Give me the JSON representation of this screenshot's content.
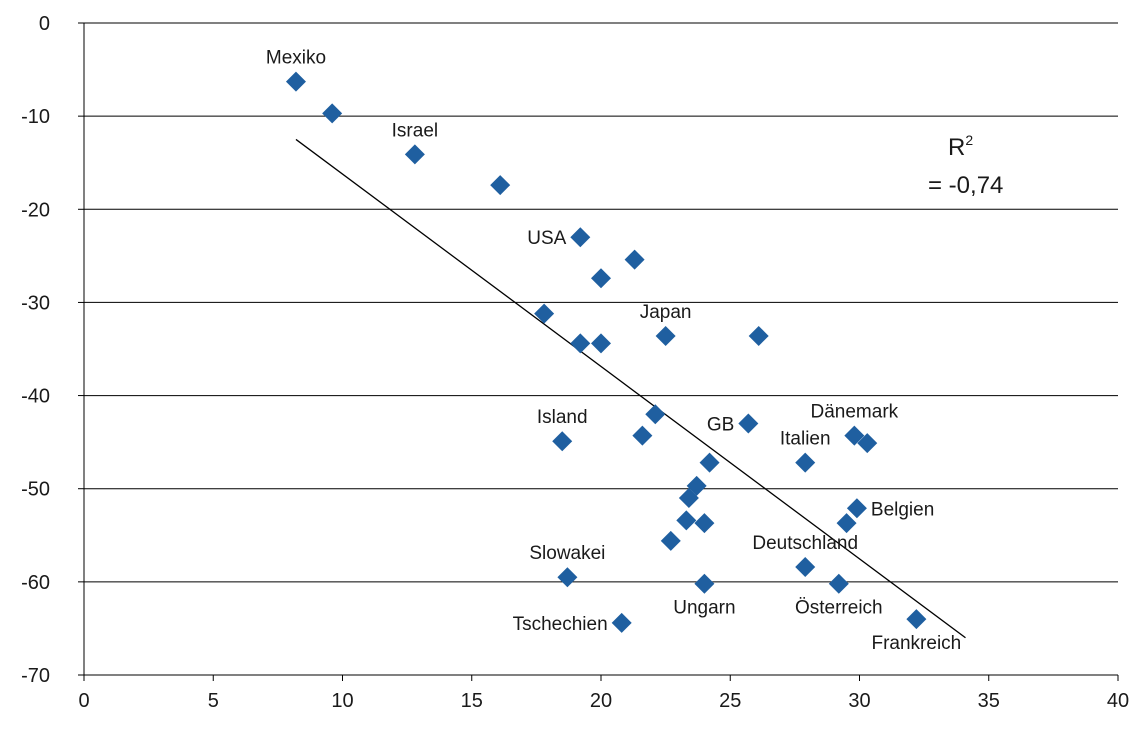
{
  "chart_data": {
    "type": "scatter",
    "x": {
      "range": [
        0,
        40
      ],
      "ticks": [
        0,
        5,
        10,
        15,
        20,
        25,
        30,
        35,
        40
      ],
      "tick_labels": [
        "0",
        "5",
        "10",
        "15",
        "20",
        "25",
        "30",
        "35",
        "40"
      ]
    },
    "y": {
      "range": [
        -70,
        0
      ],
      "ticks": [
        0,
        -10,
        -20,
        -30,
        -40,
        -50,
        -60,
        -70
      ],
      "tick_labels": [
        "0",
        "-10",
        "-20",
        "-30",
        "-40",
        "-50",
        "-60",
        "-70"
      ]
    },
    "grid": "horizontal",
    "marker": "diamond",
    "marker_color": "#1f5fa0",
    "points": [
      {
        "x": 8.2,
        "y": -6.3,
        "label": "Mexiko",
        "label_pos": "above"
      },
      {
        "x": 9.6,
        "y": -9.7
      },
      {
        "x": 12.8,
        "y": -14.1,
        "label": "Israel",
        "label_pos": "above"
      },
      {
        "x": 16.1,
        "y": -17.4
      },
      {
        "x": 19.2,
        "y": -23.0,
        "label": "USA",
        "label_pos": "left"
      },
      {
        "x": 21.3,
        "y": -25.4
      },
      {
        "x": 20.0,
        "y": -27.4
      },
      {
        "x": 17.8,
        "y": -31.2
      },
      {
        "x": 19.2,
        "y": -34.4
      },
      {
        "x": 20.0,
        "y": -34.4
      },
      {
        "x": 22.5,
        "y": -33.6,
        "label": "Japan",
        "label_pos": "above"
      },
      {
        "x": 26.1,
        "y": -33.6
      },
      {
        "x": 18.5,
        "y": -44.9,
        "label": "Island",
        "label_pos": "above"
      },
      {
        "x": 22.1,
        "y": -42.0
      },
      {
        "x": 21.6,
        "y": -44.3
      },
      {
        "x": 25.7,
        "y": -43.0,
        "label": "GB",
        "label_pos": "left"
      },
      {
        "x": 29.8,
        "y": -44.3,
        "label": "Dänemark",
        "label_pos": "above"
      },
      {
        "x": 30.3,
        "y": -45.1
      },
      {
        "x": 27.9,
        "y": -47.2,
        "label": "Italien",
        "label_pos": "above"
      },
      {
        "x": 24.2,
        "y": -47.2
      },
      {
        "x": 23.7,
        "y": -49.7
      },
      {
        "x": 23.4,
        "y": -51.0
      },
      {
        "x": 29.9,
        "y": -52.1,
        "label": "Belgien",
        "label_pos": "right"
      },
      {
        "x": 29.5,
        "y": -53.7
      },
      {
        "x": 23.3,
        "y": -53.4
      },
      {
        "x": 24.0,
        "y": -53.7
      },
      {
        "x": 22.7,
        "y": -55.6
      },
      {
        "x": 18.7,
        "y": -59.5,
        "label": "Slowakei",
        "label_pos": "above"
      },
      {
        "x": 27.9,
        "y": -58.4,
        "label": "Deutschland",
        "label_pos": "above"
      },
      {
        "x": 24.0,
        "y": -60.2,
        "label": "Ungarn",
        "label_pos": "below"
      },
      {
        "x": 29.2,
        "y": -60.2,
        "label": "Österreich",
        "label_pos": "below"
      },
      {
        "x": 20.8,
        "y": -64.4,
        "label": "Tschechien",
        "label_pos": "left"
      },
      {
        "x": 32.2,
        "y": -64.0,
        "label": "Frankreich",
        "label_pos": "below"
      }
    ],
    "trendline": {
      "x": [
        8.2,
        34.1
      ],
      "y": [
        -12.5,
        -66.0
      ]
    },
    "annotation": {
      "r2_text": "R",
      "r2_sup": "2",
      "r2_value": "= -0,74"
    }
  }
}
